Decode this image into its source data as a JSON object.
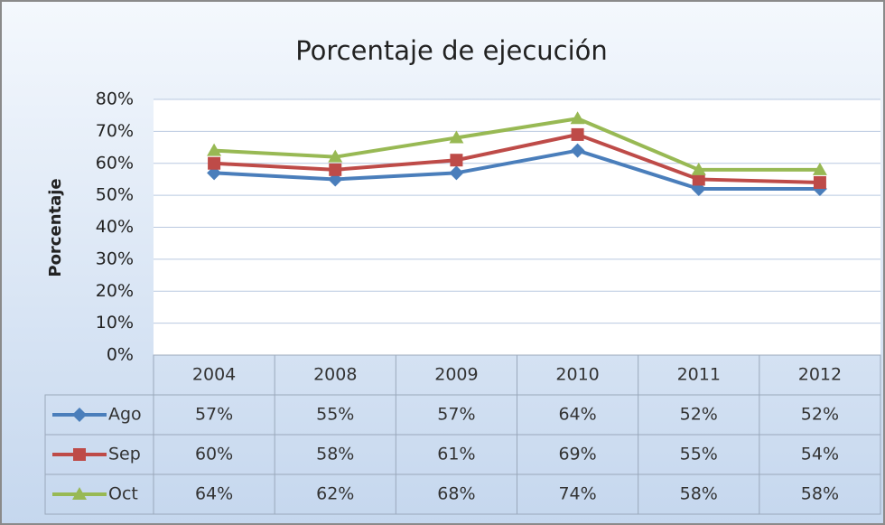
{
  "chart_data": {
    "type": "line",
    "title": "Porcentaje de ejecución",
    "y_label": "Porcentaje",
    "categories": [
      "2004",
      "2008",
      "2009",
      "2010",
      "2011",
      "2012"
    ],
    "series": [
      {
        "name": "Ago",
        "color": "#4a7ebb",
        "marker": "diamond",
        "values": [
          57,
          55,
          57,
          64,
          52,
          52
        ],
        "value_labels": [
          "57%",
          "55%",
          "57%",
          "64%",
          "52%",
          "52%"
        ]
      },
      {
        "name": "Sep",
        "color": "#be4b48",
        "marker": "square",
        "values": [
          60,
          58,
          61,
          69,
          55,
          54
        ],
        "value_labels": [
          "60%",
          "58%",
          "61%",
          "69%",
          "55%",
          "54%"
        ]
      },
      {
        "name": "Oct",
        "color": "#98b954",
        "marker": "triangle",
        "values": [
          64,
          62,
          68,
          74,
          58,
          58
        ],
        "value_labels": [
          "64%",
          "62%",
          "68%",
          "74%",
          "58%",
          "58%"
        ]
      }
    ],
    "ylim": [
      0,
      80
    ],
    "yticks": [
      {
        "value": 0,
        "label": "0%"
      },
      {
        "value": 10,
        "label": "10%"
      },
      {
        "value": 20,
        "label": "20%"
      },
      {
        "value": 30,
        "label": "30%"
      },
      {
        "value": 40,
        "label": "40%"
      },
      {
        "value": 50,
        "label": "50%"
      },
      {
        "value": 60,
        "label": "60%"
      },
      {
        "value": 70,
        "label": "70%"
      },
      {
        "value": 80,
        "label": "80%"
      }
    ],
    "grid": true
  }
}
